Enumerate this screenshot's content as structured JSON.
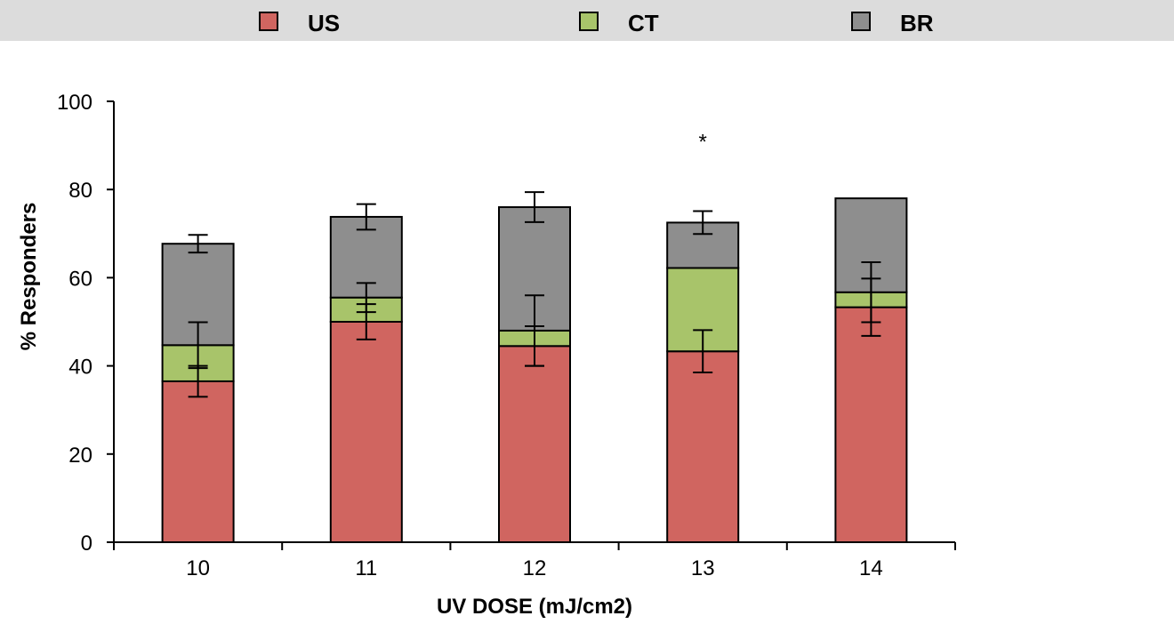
{
  "chart_data": {
    "type": "bar",
    "stacked": true,
    "categories": [
      "10",
      "11",
      "12",
      "13",
      "14"
    ],
    "series": [
      {
        "name": "US",
        "color": "#d06560",
        "values": [
          36.5,
          50,
          44.5,
          43.3,
          53.3
        ],
        "error": [
          3.5,
          4,
          4.5,
          4.8,
          6.5
        ]
      },
      {
        "name": "CT",
        "color": "#a8c46a",
        "values": [
          8.2,
          5.5,
          3.5,
          18.9,
          3.4
        ],
        "error": [
          5.2,
          3.3,
          8,
          0,
          6.8
        ]
      },
      {
        "name": "BR",
        "color": "#8e8e8e",
        "values": [
          23,
          18.3,
          28,
          10.3,
          21.3
        ],
        "error": [
          2,
          2.9,
          3.4,
          2.6,
          0
        ]
      }
    ],
    "xlabel": "UV DOSE (mJ/cm2)",
    "ylabel": "% Responders",
    "ylim": [
      0,
      100
    ],
    "yticks": [
      "0",
      "20",
      "40",
      "60",
      "80",
      "100"
    ],
    "annotations": [
      {
        "category": "13",
        "text": "*",
        "y": 92
      }
    ],
    "legend_position": "top",
    "grid": false
  }
}
